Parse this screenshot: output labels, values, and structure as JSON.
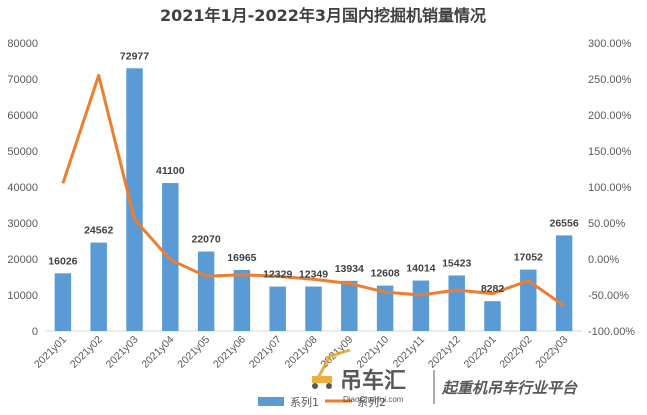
{
  "chart_data": {
    "type": "bar",
    "title": "2021年1月-2022年3月国内挖掘机销量情况",
    "categories": [
      "2021y01",
      "2021y02",
      "2021y03",
      "2021y04",
      "2021y05",
      "2021y06",
      "2021y07",
      "2021y08",
      "2021y09",
      "2021y10",
      "2021y11",
      "2021y12",
      "2022y01",
      "2022y02",
      "2022y03"
    ],
    "series": [
      {
        "name": "系列1",
        "type": "bar",
        "axis": "left",
        "color": "#5B9BD5",
        "values": [
          16026,
          24562,
          72977,
          41100,
          22070,
          16965,
          12329,
          12349,
          13934,
          12608,
          14014,
          15423,
          8282,
          17052,
          26556
        ]
      },
      {
        "name": "系列2",
        "type": "line",
        "axis": "right",
        "color": "#ED7D31",
        "values": [
          105,
          255,
          55,
          -1,
          -24,
          -22,
          -24,
          -28,
          -34,
          -46,
          -50,
          -43,
          -48,
          -30,
          -65
        ]
      }
    ],
    "y_left": {
      "min": 0,
      "max": 80000,
      "step": 10000,
      "tick_labels": [
        "0",
        "10000",
        "20000",
        "30000",
        "40000",
        "50000",
        "60000",
        "70000",
        "80000"
      ]
    },
    "y_right": {
      "min": -100,
      "max": 300,
      "step": 50,
      "tick_labels": [
        "-100.00%",
        "-50.00%",
        "0.00%",
        "50.00%",
        "100.00%",
        "150.00%",
        "200.00%",
        "250.00%",
        "300.00%"
      ]
    },
    "grid": false,
    "legend": "bottom"
  },
  "legend": {
    "bar_label": "系列1",
    "line_label": "系列2"
  },
  "watermark": {
    "brand": "吊车汇",
    "url": "DiaoCheHui.com",
    "slogan": "起重机吊车行业平台"
  }
}
